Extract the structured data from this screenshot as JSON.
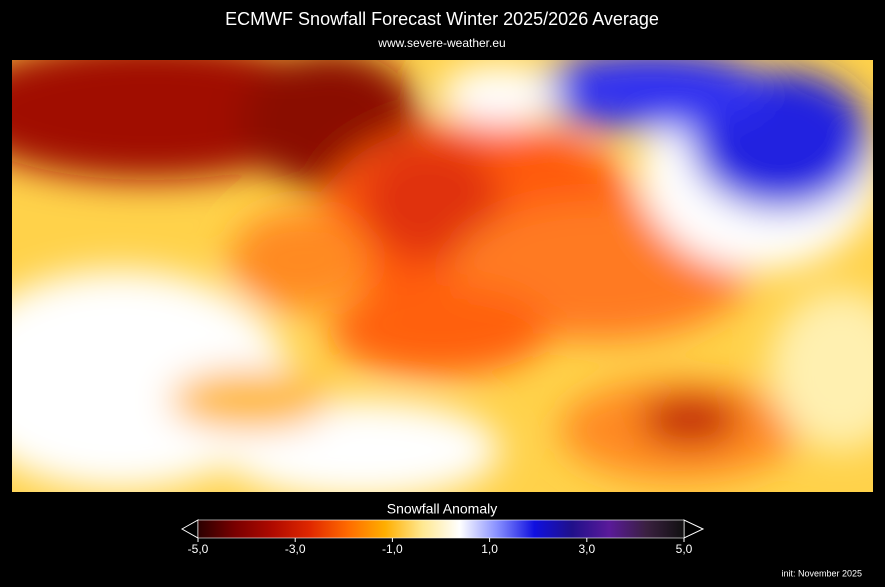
{
  "header": {
    "title": "ECMWF Snowfall Forecast   Winter 2025/2026 Average",
    "subtitle": "www.severe-weather.eu"
  },
  "colorbar": {
    "label": "Snowfall Anomaly",
    "range": [
      -5,
      5
    ],
    "colors": [
      "#2a0000",
      "#7a0000",
      "#b00a00",
      "#e02800",
      "#ff6a00",
      "#ffae00",
      "#ffe890",
      "#ffffff",
      "#8890ff",
      "#1010e0",
      "#20108a",
      "#5a1a9a",
      "#3a2040",
      "#101010"
    ],
    "ticks": [
      {
        "value": -5,
        "label": "-5,0"
      },
      {
        "value": -3,
        "label": "-3,0"
      },
      {
        "value": -1,
        "label": "-1,0"
      },
      {
        "value": 1,
        "label": "1,0"
      },
      {
        "value": 3,
        "label": "3,0"
      },
      {
        "value": 5,
        "label": "5,0"
      }
    ]
  },
  "footer": {
    "note": "init: November 2025"
  }
}
